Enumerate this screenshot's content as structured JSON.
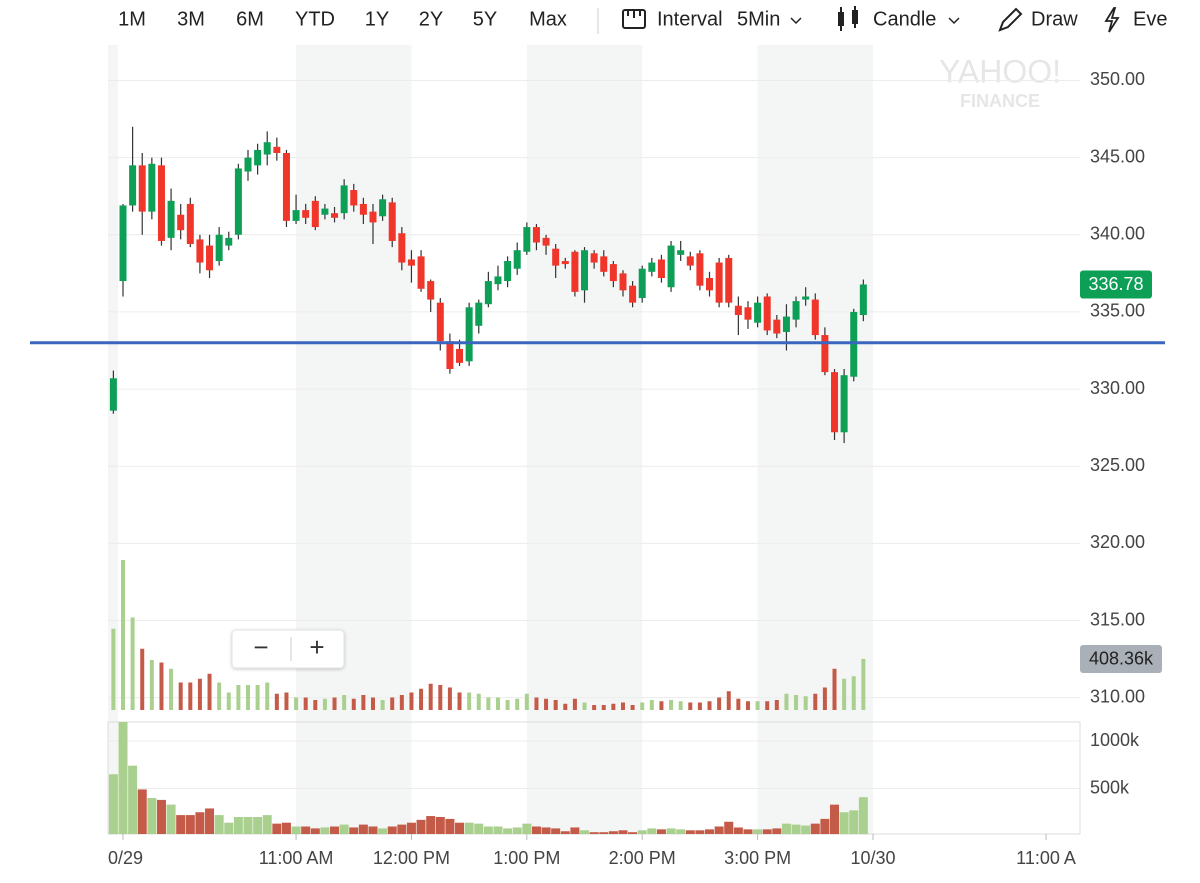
{
  "toolbar": {
    "ranges": [
      "1M",
      "3M",
      "6M",
      "YTD",
      "1Y",
      "2Y",
      "5Y",
      "Max"
    ],
    "interval_label": "Interval",
    "interval_value": "5Min",
    "chart_style": "Candle",
    "draw": "Draw",
    "events": "Eve"
  },
  "watermark": {
    "line1": "YAHOO!",
    "line2": "FINANCE"
  },
  "zoom": {
    "minus": "−",
    "plus": "+"
  },
  "chart_data": {
    "type": "candlestick",
    "x": [
      "09:25",
      "09:30",
      "09:35",
      "09:40",
      "09:45",
      "09:50",
      "09:55",
      "10:00",
      "10:05",
      "10:10",
      "10:15",
      "10:20",
      "10:25",
      "10:30",
      "10:35",
      "10:40",
      "10:45",
      "10:50",
      "10:55",
      "11:00",
      "11:05",
      "11:10",
      "11:15",
      "11:20",
      "11:25",
      "11:30",
      "11:35",
      "11:40",
      "11:45",
      "11:50",
      "11:55",
      "12:00",
      "12:05",
      "12:10",
      "12:15",
      "12:20",
      "12:25",
      "12:30",
      "12:35",
      "12:40",
      "12:45",
      "12:50",
      "12:55",
      "13:00",
      "13:05",
      "13:10",
      "13:15",
      "13:20",
      "13:25",
      "13:30",
      "13:35",
      "13:40",
      "13:45",
      "13:50",
      "13:55",
      "14:00",
      "14:05",
      "14:10",
      "14:15",
      "14:20",
      "14:25",
      "14:30",
      "14:35",
      "14:40",
      "14:45",
      "14:50",
      "14:55",
      "15:00",
      "15:05",
      "15:10",
      "15:15",
      "15:20",
      "15:25",
      "15:30",
      "15:35",
      "15:40",
      "15:45",
      "15:50",
      "15:55"
    ],
    "open": [
      328.6,
      337.0,
      341.9,
      344.5,
      341.5,
      344.5,
      339.8,
      341.3,
      342.0,
      339.7,
      339.3,
      338.3,
      339.3,
      340.0,
      344.1,
      344.5,
      345.2,
      345.7,
      345.3,
      340.9,
      341.6,
      342.2,
      341.3,
      341.4,
      341.4,
      342.9,
      342.0,
      341.5,
      341.2,
      342.1,
      340.1,
      338.4,
      338.6,
      337.0,
      335.6,
      333.1,
      332.6,
      331.8,
      334.1,
      335.5,
      336.8,
      337.0,
      337.8,
      338.9,
      340.5,
      339.8,
      339.1,
      338.3,
      338.9,
      336.4,
      338.8,
      338.6,
      338.1,
      337.5,
      336.7,
      335.9,
      337.6,
      338.4,
      336.6,
      338.7,
      338.6,
      338.8,
      337.2,
      338.2,
      338.5,
      335.4,
      335.3,
      334.3,
      336.0,
      334.5,
      333.7,
      334.5,
      335.8,
      335.8,
      333.5,
      331.1,
      327.2,
      330.8,
      334.8
    ],
    "high": [
      331.2,
      342.0,
      347.0,
      345.3,
      345.0,
      345.0,
      343.0,
      342.0,
      342.4,
      340.0,
      340.0,
      340.5,
      340.2,
      344.6,
      345.5,
      345.9,
      346.7,
      346.3,
      345.5,
      342.6,
      342.0,
      342.5,
      342.0,
      341.8,
      343.6,
      343.3,
      342.4,
      342.0,
      342.6,
      342.4,
      340.5,
      339.0,
      339.0,
      337.1,
      335.9,
      333.6,
      333.2,
      335.6,
      335.8,
      337.6,
      338.0,
      338.6,
      339.5,
      340.8,
      340.7,
      340.0,
      339.4,
      338.5,
      339.0,
      339.2,
      339.0,
      339.0,
      338.3,
      337.7,
      337.0,
      338.0,
      338.5,
      338.7,
      339.6,
      339.6,
      338.9,
      339.0,
      337.6,
      338.5,
      338.7,
      336.0,
      335.7,
      336.0,
      336.2,
      334.8,
      335.5,
      336.0,
      336.6,
      336.2,
      334.0,
      331.3,
      331.3,
      335.2,
      337.1
    ],
    "low": [
      328.4,
      336.0,
      341.5,
      340.0,
      341.0,
      339.3,
      339.0,
      339.7,
      339.2,
      337.5,
      337.2,
      338.0,
      339.0,
      339.7,
      343.5,
      343.9,
      344.5,
      344.8,
      340.5,
      340.7,
      340.7,
      340.3,
      341.0,
      340.8,
      341.0,
      341.5,
      340.7,
      339.4,
      340.9,
      339.2,
      337.7,
      336.9,
      336.3,
      335.0,
      332.5,
      331.0,
      331.5,
      331.5,
      333.6,
      335.3,
      336.4,
      336.6,
      337.4,
      338.7,
      339.0,
      338.7,
      337.2,
      337.8,
      336.0,
      335.6,
      337.8,
      337.3,
      336.6,
      336.0,
      335.3,
      335.6,
      337.3,
      336.9,
      336.3,
      338.3,
      337.7,
      336.4,
      336.0,
      335.3,
      335.3,
      333.5,
      333.9,
      334.0,
      333.5,
      333.3,
      332.5,
      334.0,
      335.4,
      333.2,
      330.9,
      326.7,
      326.5,
      330.5,
      334.4
    ],
    "close": [
      330.7,
      341.9,
      344.5,
      341.5,
      344.6,
      339.6,
      342.2,
      340.3,
      339.4,
      338.2,
      337.7,
      340.0,
      339.8,
      344.3,
      345.0,
      345.5,
      346.0,
      345.3,
      340.9,
      341.6,
      341.1,
      340.5,
      341.7,
      341.1,
      343.2,
      341.9,
      341.3,
      340.8,
      342.3,
      339.6,
      338.2,
      338.0,
      336.5,
      335.8,
      333.1,
      331.3,
      331.7,
      335.3,
      335.6,
      337.0,
      337.3,
      338.3,
      339.0,
      340.5,
      339.5,
      339.3,
      338.0,
      338.1,
      336.3,
      339.0,
      338.2,
      337.6,
      337.0,
      336.4,
      335.6,
      337.8,
      338.2,
      337.2,
      339.3,
      339.0,
      338.0,
      336.7,
      336.4,
      335.6,
      335.6,
      334.8,
      334.5,
      335.6,
      333.8,
      333.6,
      334.7,
      335.7,
      336.0,
      333.5,
      331.1,
      327.2,
      330.9,
      335.0,
      336.78
    ],
    "volume": [
      650000,
      1200000,
      740000,
      490000,
      400000,
      380000,
      330000,
      220000,
      220000,
      250000,
      290000,
      220000,
      140000,
      200000,
      200000,
      200000,
      220000,
      130000,
      140000,
      100000,
      100000,
      80000,
      90000,
      100000,
      120000,
      90000,
      120000,
      100000,
      80000,
      100000,
      120000,
      140000,
      170000,
      210000,
      200000,
      180000,
      140000,
      140000,
      130000,
      100000,
      100000,
      80000,
      90000,
      130000,
      100000,
      90000,
      80000,
      50000,
      90000,
      60000,
      40000,
      40000,
      50000,
      60000,
      40000,
      60000,
      80000,
      70000,
      80000,
      70000,
      60000,
      60000,
      70000,
      100000,
      150000,
      90000,
      70000,
      70000,
      70000,
      80000,
      130000,
      120000,
      110000,
      130000,
      180000,
      330000,
      250000,
      270000,
      408360
    ],
    "volume_last_label": "408.36k",
    "ylim": [
      309.2,
      352.3
    ],
    "yticks": [
      {
        "value": 310,
        "label": "310.00"
      },
      {
        "value": 315,
        "label": "315.00"
      },
      {
        "value": 320,
        "label": "320.00"
      },
      {
        "value": 325,
        "label": "325.00"
      },
      {
        "value": 330,
        "label": "330.00"
      },
      {
        "value": 335,
        "label": "335.00"
      },
      {
        "value": 340,
        "label": "340.00"
      },
      {
        "value": 345,
        "label": "345.00"
      },
      {
        "value": 350,
        "label": "350.00"
      }
    ],
    "y2lim": [
      0,
      1200000
    ],
    "y2ticks": [
      {
        "value": 500000,
        "label": "500k"
      },
      {
        "value": 1000000,
        "label": "1000k"
      }
    ],
    "xticks": [
      {
        "value": "09:30",
        "label": "0/29"
      },
      {
        "value": "11:00",
        "label": "11:00 AM"
      },
      {
        "value": "12:00",
        "label": "12:00 PM"
      },
      {
        "value": "13:00",
        "label": "1:00 PM"
      },
      {
        "value": "14:00",
        "label": "2:00 PM"
      },
      {
        "value": "15:00",
        "label": "3:00 PM"
      },
      {
        "value": "16:00",
        "label": "10/30"
      },
      {
        "value": "17:30",
        "label": "11:00 A"
      }
    ],
    "hline": 333,
    "grid": true,
    "up_color": "#0e9f57",
    "down_color": "#f0362a",
    "volume_up_color": "#a9d08e",
    "volume_down_color": "#c45a48",
    "hline_color": "#3a66c0"
  }
}
